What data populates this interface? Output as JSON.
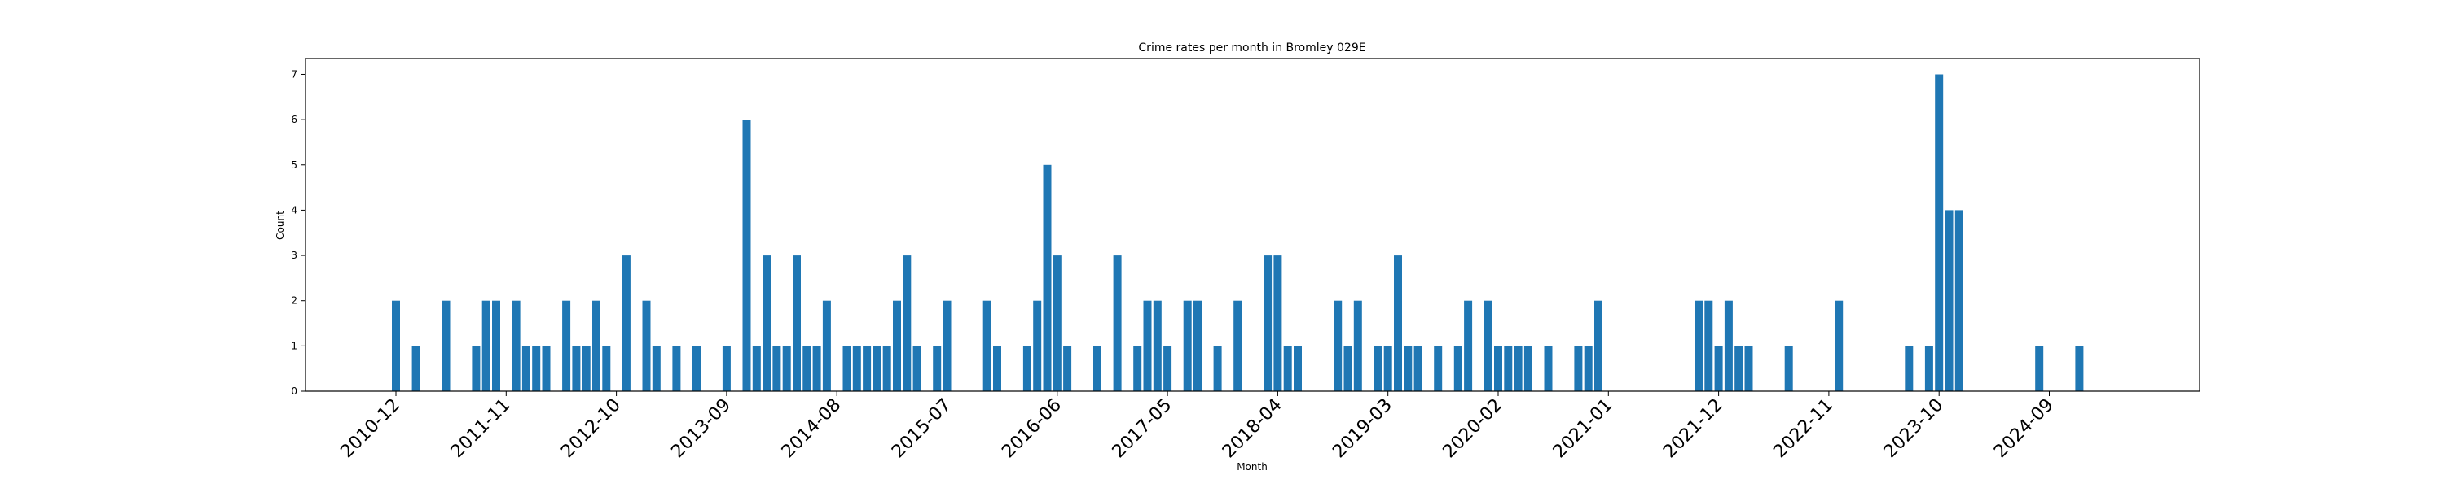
{
  "chart_data": {
    "type": "bar",
    "title": "Crime rates per month in Bromley 029E",
    "xlabel": "Month",
    "ylabel": "Count",
    "ylim": [
      0,
      7.35
    ],
    "yticks": [
      0,
      1,
      2,
      3,
      4,
      5,
      6,
      7
    ],
    "xtick_labels": [
      "2010-12",
      "2011-11",
      "2012-10",
      "2013-09",
      "2014-08",
      "2015-07",
      "2016-06",
      "2017-05",
      "2018-04",
      "2019-03",
      "2020-02",
      "2021-01",
      "2021-12",
      "2022-11",
      "2023-10",
      "2024-09"
    ],
    "bar_color": "#1f77b4",
    "grid": false,
    "bars": [
      {
        "x": "2010-12",
        "y": 2
      },
      {
        "x": "2011-02",
        "y": 1
      },
      {
        "x": "2011-05",
        "y": 2
      },
      {
        "x": "2011-08",
        "y": 1
      },
      {
        "x": "2011-09",
        "y": 2
      },
      {
        "x": "2011-10",
        "y": 2
      },
      {
        "x": "2011-12",
        "y": 2
      },
      {
        "x": "2012-01",
        "y": 1
      },
      {
        "x": "2012-02",
        "y": 1
      },
      {
        "x": "2012-03",
        "y": 1
      },
      {
        "x": "2012-05",
        "y": 2
      },
      {
        "x": "2012-06",
        "y": 1
      },
      {
        "x": "2012-07",
        "y": 1
      },
      {
        "x": "2012-08",
        "y": 2
      },
      {
        "x": "2012-09",
        "y": 1
      },
      {
        "x": "2012-11",
        "y": 3
      },
      {
        "x": "2013-01",
        "y": 2
      },
      {
        "x": "2013-02",
        "y": 1
      },
      {
        "x": "2013-04",
        "y": 1
      },
      {
        "x": "2013-06",
        "y": 1
      },
      {
        "x": "2013-09",
        "y": 1
      },
      {
        "x": "2013-11",
        "y": 6
      },
      {
        "x": "2013-12",
        "y": 1
      },
      {
        "x": "2014-01",
        "y": 3
      },
      {
        "x": "2014-02",
        "y": 1
      },
      {
        "x": "2014-03",
        "y": 1
      },
      {
        "x": "2014-04",
        "y": 3
      },
      {
        "x": "2014-05",
        "y": 1
      },
      {
        "x": "2014-06",
        "y": 1
      },
      {
        "x": "2014-07",
        "y": 2
      },
      {
        "x": "2014-09",
        "y": 1
      },
      {
        "x": "2014-10",
        "y": 1
      },
      {
        "x": "2014-11",
        "y": 1
      },
      {
        "x": "2014-12",
        "y": 1
      },
      {
        "x": "2015-01",
        "y": 1
      },
      {
        "x": "2015-02",
        "y": 2
      },
      {
        "x": "2015-03",
        "y": 3
      },
      {
        "x": "2015-04",
        "y": 1
      },
      {
        "x": "2015-06",
        "y": 1
      },
      {
        "x": "2015-07",
        "y": 2
      },
      {
        "x": "2015-11",
        "y": 2
      },
      {
        "x": "2015-12",
        "y": 1
      },
      {
        "x": "2016-03",
        "y": 1
      },
      {
        "x": "2016-04",
        "y": 2
      },
      {
        "x": "2016-05",
        "y": 5
      },
      {
        "x": "2016-06",
        "y": 3
      },
      {
        "x": "2016-07",
        "y": 1
      },
      {
        "x": "2016-10",
        "y": 1
      },
      {
        "x": "2016-12",
        "y": 3
      },
      {
        "x": "2017-02",
        "y": 1
      },
      {
        "x": "2017-03",
        "y": 2
      },
      {
        "x": "2017-04",
        "y": 2
      },
      {
        "x": "2017-05",
        "y": 1
      },
      {
        "x": "2017-07",
        "y": 2
      },
      {
        "x": "2017-08",
        "y": 2
      },
      {
        "x": "2017-10",
        "y": 1
      },
      {
        "x": "2017-12",
        "y": 2
      },
      {
        "x": "2018-03",
        "y": 3
      },
      {
        "x": "2018-04",
        "y": 3
      },
      {
        "x": "2018-05",
        "y": 1
      },
      {
        "x": "2018-06",
        "y": 1
      },
      {
        "x": "2018-10",
        "y": 2
      },
      {
        "x": "2018-11",
        "y": 1
      },
      {
        "x": "2018-12",
        "y": 2
      },
      {
        "x": "2019-02",
        "y": 1
      },
      {
        "x": "2019-03",
        "y": 1
      },
      {
        "x": "2019-04",
        "y": 3
      },
      {
        "x": "2019-05",
        "y": 1
      },
      {
        "x": "2019-06",
        "y": 1
      },
      {
        "x": "2019-08",
        "y": 1
      },
      {
        "x": "2019-10",
        "y": 1
      },
      {
        "x": "2019-11",
        "y": 2
      },
      {
        "x": "2020-01",
        "y": 2
      },
      {
        "x": "2020-02",
        "y": 1
      },
      {
        "x": "2020-03",
        "y": 1
      },
      {
        "x": "2020-04",
        "y": 1
      },
      {
        "x": "2020-05",
        "y": 1
      },
      {
        "x": "2020-07",
        "y": 1
      },
      {
        "x": "2020-10",
        "y": 1
      },
      {
        "x": "2020-11",
        "y": 1
      },
      {
        "x": "2020-12",
        "y": 2
      },
      {
        "x": "2021-10",
        "y": 2
      },
      {
        "x": "2021-11",
        "y": 2
      },
      {
        "x": "2021-12",
        "y": 1
      },
      {
        "x": "2022-01",
        "y": 2
      },
      {
        "x": "2022-02",
        "y": 1
      },
      {
        "x": "2022-03",
        "y": 1
      },
      {
        "x": "2022-07",
        "y": 1
      },
      {
        "x": "2022-12",
        "y": 2
      },
      {
        "x": "2023-07",
        "y": 1
      },
      {
        "x": "2023-09",
        "y": 1
      },
      {
        "x": "2023-10",
        "y": 7
      },
      {
        "x": "2023-11",
        "y": 4
      },
      {
        "x": "2023-12",
        "y": 4
      },
      {
        "x": "2024-08",
        "y": 1
      },
      {
        "x": "2024-12",
        "y": 1
      }
    ]
  }
}
